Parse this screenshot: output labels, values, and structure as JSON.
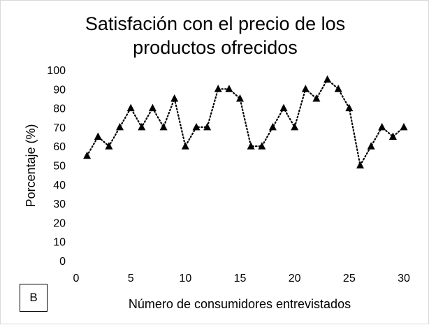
{
  "chart_data": {
    "type": "line",
    "title_lines": [
      "Satisfación con el precio de los",
      "productos ofrecidos"
    ],
    "xlabel": "Número de consumidores entrevistados",
    "ylabel": "Porcentaje (%)",
    "panel_label": "B",
    "xlim": [
      0,
      30
    ],
    "ylim": [
      0,
      100
    ],
    "xticks": [
      0,
      5,
      10,
      15,
      20,
      25,
      30
    ],
    "yticks": [
      0,
      10,
      20,
      30,
      40,
      50,
      60,
      70,
      80,
      90,
      100
    ],
    "grid": false,
    "line_style": "dotted",
    "marker": "triangle",
    "color": "#000000",
    "x": [
      1,
      2,
      3,
      4,
      5,
      6,
      7,
      8,
      9,
      10,
      11,
      12,
      13,
      14,
      15,
      16,
      17,
      18,
      19,
      20,
      21,
      22,
      23,
      24,
      25,
      26,
      27,
      28,
      29,
      30
    ],
    "y": [
      55,
      65,
      60,
      70,
      80,
      70,
      80,
      70,
      85,
      60,
      70,
      70,
      90,
      90,
      85,
      60,
      60,
      70,
      80,
      70,
      90,
      85,
      95,
      90,
      80,
      50,
      60,
      70,
      65,
      70
    ]
  }
}
